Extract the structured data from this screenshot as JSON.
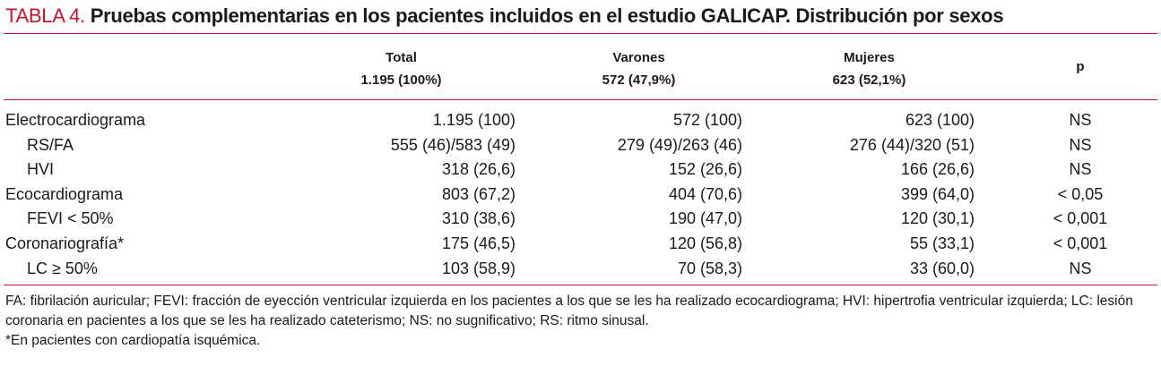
{
  "title": {
    "label": "TABLA 4.",
    "text": "Pruebas complementarias en los pacientes incluidos en el estudio GALICAP. Distribución por sexos"
  },
  "columns": {
    "total": {
      "name": "Total",
      "count": "1.195 (100%)"
    },
    "varones": {
      "name": "Varones",
      "count": "572 (47,9%)"
    },
    "mujeres": {
      "name": "Mujeres",
      "count": "623 (52,1%)"
    },
    "p": "p"
  },
  "rows": [
    {
      "label": "Electrocardiograma",
      "total": "1.195 (100)",
      "varones": "572 (100)",
      "mujeres": "623 (100)",
      "p": "NS"
    },
    {
      "label": "RS/FA",
      "total": "555 (46)/583 (49)",
      "varones": "279 (49)/263 (46)",
      "mujeres": "276 (44)/320 (51)",
      "p": "NS"
    },
    {
      "label": "HVI",
      "total": "318 (26,6)",
      "varones": "152 (26,6)",
      "mujeres": "166 (26,6)",
      "p": "NS"
    },
    {
      "label": "Ecocardiograma",
      "total": "803 (67,2)",
      "varones": "404 (70,6)",
      "mujeres": "399 (64,0)",
      "p": "< 0,05"
    },
    {
      "label": "FEVI < 50%",
      "total": "310 (38,6)",
      "varones": "190 (47,0)",
      "mujeres": "120 (30,1)",
      "p": "< 0,001"
    },
    {
      "label": "Coronariografía*",
      "total": "175 (46,5)",
      "varones": "120 (56,8)",
      "mujeres": "55 (33,1)",
      "p": "< 0,001"
    },
    {
      "label": "LC ≥ 50%",
      "total": "103 (58,9)",
      "varones": "70 (58,3)",
      "mujeres": "33 (60,0)",
      "p": "NS"
    }
  ],
  "footnotes": {
    "abbreviations": "FA: fibrilación auricular; FEVI: fracción de eyección ventricular izquierda en los pacientes a los que se les ha realizado ecocardiograma;  HVI: hipertrofia ventricular izquierda; LC: lesión coronaria en pacientes a los que se les ha realizado cateterismo; NS: no sugnificativo; RS: ritmo sinusal.",
    "asterisk": "*En pacientes con cardiopatía isquémica."
  }
}
